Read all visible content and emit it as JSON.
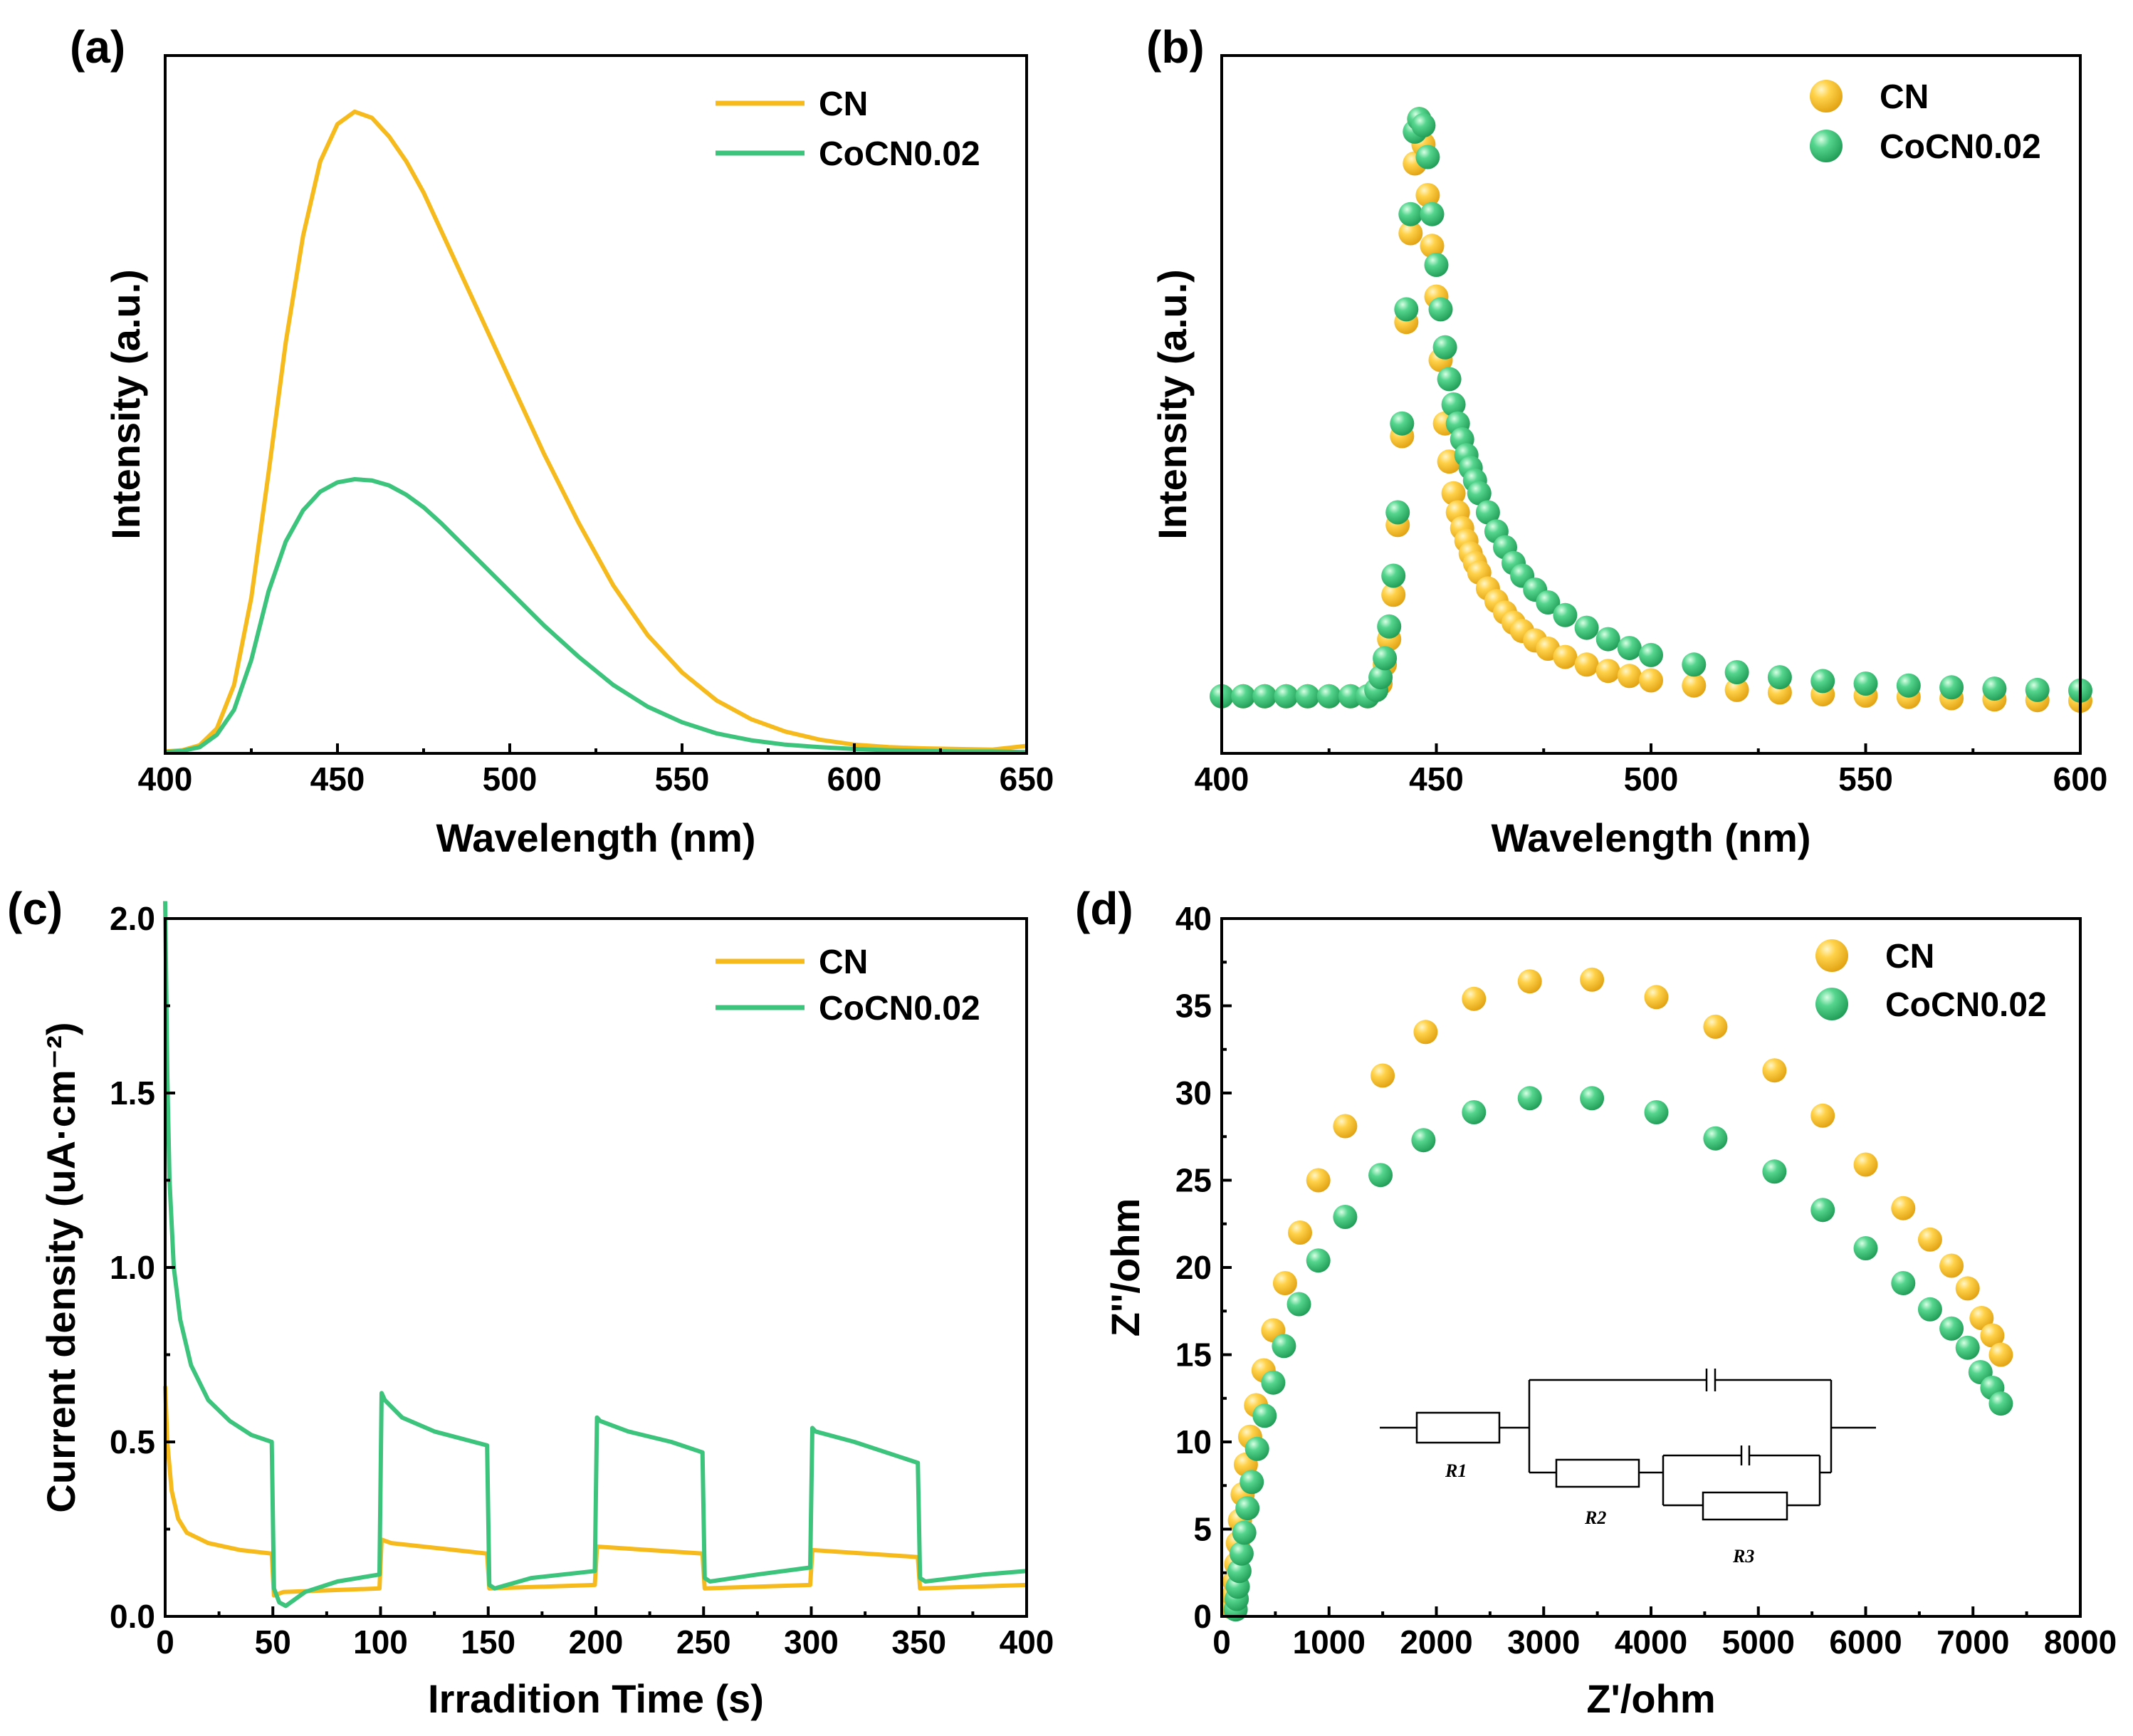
{
  "colors": {
    "cn": "#F7BA1C",
    "cocn": "#3CC47C"
  },
  "chart_data": [
    {
      "id": "a",
      "label": "(a)",
      "type": "line",
      "xlabel": "Wavelength (nm)",
      "ylabel": "Intensity (a.u.)",
      "xlim": [
        400,
        650
      ],
      "ylim": [
        0,
        1.12
      ],
      "xticks": [
        "400",
        "450",
        "500",
        "550",
        "600",
        "650"
      ],
      "legend_position": "top-right",
      "series": [
        {
          "name": "CN",
          "color_key": "cn",
          "x": [
            400,
            405,
            410,
            415,
            420,
            425,
            430,
            435,
            440,
            445,
            450,
            455,
            460,
            465,
            470,
            475,
            480,
            490,
            500,
            510,
            520,
            530,
            540,
            550,
            560,
            570,
            580,
            590,
            600,
            610,
            620,
            630,
            640,
            650
          ],
          "y": [
            0.003,
            0.005,
            0.013,
            0.04,
            0.11,
            0.25,
            0.45,
            0.66,
            0.83,
            0.95,
            1.01,
            1.03,
            1.02,
            0.99,
            0.95,
            0.9,
            0.84,
            0.72,
            0.6,
            0.48,
            0.37,
            0.27,
            0.19,
            0.13,
            0.085,
            0.055,
            0.035,
            0.022,
            0.014,
            0.01,
            0.008,
            0.007,
            0.006,
            0.012
          ]
        },
        {
          "name": "CoCN0.02",
          "color_key": "cocn",
          "x": [
            400,
            405,
            410,
            415,
            420,
            425,
            430,
            435,
            440,
            445,
            450,
            455,
            460,
            465,
            470,
            475,
            480,
            490,
            500,
            510,
            520,
            530,
            540,
            550,
            560,
            570,
            580,
            590,
            600,
            610,
            620,
            630,
            640,
            650
          ],
          "y": [
            0.002,
            0.004,
            0.01,
            0.03,
            0.07,
            0.15,
            0.26,
            0.34,
            0.39,
            0.42,
            0.435,
            0.44,
            0.438,
            0.43,
            0.415,
            0.395,
            0.37,
            0.315,
            0.26,
            0.205,
            0.155,
            0.11,
            0.075,
            0.05,
            0.032,
            0.021,
            0.014,
            0.01,
            0.007,
            0.005,
            0.004,
            0.003,
            0.003,
            0.002
          ]
        }
      ]
    },
    {
      "id": "b",
      "label": "(b)",
      "type": "scatter",
      "xlabel": "Wavelength (nm)",
      "ylabel": "Intensity (a.u.)",
      "xlim": [
        400,
        600
      ],
      "ylim": [
        0,
        1.1
      ],
      "xticks": [
        "400",
        "450",
        "500",
        "550",
        "600"
      ],
      "legend_position": "top-right",
      "series": [
        {
          "name": "CN",
          "color_key": "cn",
          "x": [
            400,
            405,
            410,
            415,
            420,
            425,
            430,
            434,
            436,
            437,
            438,
            439,
            440,
            441,
            442,
            443,
            444,
            445,
            446,
            447,
            448,
            449,
            450,
            451,
            452,
            453,
            454,
            455,
            456,
            457,
            458,
            459,
            460,
            462,
            464,
            466,
            468,
            470,
            473,
            476,
            480,
            485,
            490,
            495,
            500,
            510,
            520,
            530,
            540,
            550,
            560,
            570,
            580,
            590,
            600
          ],
          "y": [
            0.09,
            0.09,
            0.09,
            0.09,
            0.09,
            0.09,
            0.09,
            0.09,
            0.1,
            0.11,
            0.14,
            0.18,
            0.25,
            0.36,
            0.5,
            0.68,
            0.82,
            0.93,
            1.0,
            0.96,
            0.88,
            0.8,
            0.72,
            0.62,
            0.52,
            0.46,
            0.41,
            0.38,
            0.355,
            0.335,
            0.315,
            0.3,
            0.285,
            0.26,
            0.24,
            0.222,
            0.206,
            0.193,
            0.178,
            0.165,
            0.152,
            0.14,
            0.13,
            0.122,
            0.115,
            0.107,
            0.1,
            0.096,
            0.093,
            0.091,
            0.089,
            0.087,
            0.085,
            0.084,
            0.083
          ]
        },
        {
          "name": "CoCN0.02",
          "color_key": "cocn",
          "x": [
            400,
            405,
            410,
            415,
            420,
            425,
            430,
            434,
            436,
            437,
            438,
            439,
            440,
            441,
            442,
            443,
            444,
            445,
            446,
            447,
            448,
            449,
            450,
            451,
            452,
            453,
            454,
            455,
            456,
            457,
            458,
            459,
            460,
            462,
            464,
            466,
            468,
            470,
            473,
            476,
            480,
            485,
            490,
            495,
            500,
            510,
            520,
            530,
            540,
            550,
            560,
            570,
            580,
            590,
            600
          ],
          "y": [
            0.09,
            0.09,
            0.09,
            0.09,
            0.09,
            0.09,
            0.09,
            0.09,
            0.1,
            0.12,
            0.15,
            0.2,
            0.28,
            0.38,
            0.52,
            0.7,
            0.85,
            0.98,
            1.0,
            0.99,
            0.94,
            0.85,
            0.77,
            0.7,
            0.64,
            0.59,
            0.55,
            0.52,
            0.495,
            0.47,
            0.45,
            0.43,
            0.41,
            0.38,
            0.35,
            0.325,
            0.3,
            0.28,
            0.258,
            0.238,
            0.218,
            0.198,
            0.18,
            0.166,
            0.155,
            0.14,
            0.128,
            0.12,
            0.114,
            0.11,
            0.107,
            0.104,
            0.102,
            0.1,
            0.099
          ]
        }
      ]
    },
    {
      "id": "c",
      "label": "(c)",
      "type": "line",
      "xlabel": "Irradition Time (s)",
      "ylabel": "Current density (uA·cm⁻²)",
      "xlim": [
        0,
        400
      ],
      "ylim": [
        0,
        2.0
      ],
      "xticks": [
        "0",
        "50",
        "100",
        "150",
        "200",
        "250",
        "300",
        "350",
        "400"
      ],
      "yticks": [
        "0.0",
        "0.5",
        "1.0",
        "1.5",
        "2.0"
      ],
      "legend_position": "top-right",
      "series": [
        {
          "name": "CN",
          "color_key": "cn",
          "x": [
            0,
            1,
            3,
            6,
            10,
            20,
            35,
            49.5,
            50.5,
            55,
            99.5,
            100.5,
            105,
            149.5,
            150.5,
            199.5,
            200.5,
            249.5,
            250.5,
            299.5,
            300.5,
            349.5,
            350.5,
            400
          ],
          "y": [
            0.66,
            0.5,
            0.36,
            0.28,
            0.24,
            0.21,
            0.19,
            0.18,
            0.06,
            0.07,
            0.08,
            0.22,
            0.21,
            0.18,
            0.08,
            0.09,
            0.2,
            0.18,
            0.08,
            0.09,
            0.19,
            0.17,
            0.08,
            0.09
          ]
        },
        {
          "name": "CoCN0.02",
          "color_key": "cocn",
          "x": [
            0,
            0.5,
            1,
            2,
            4,
            7,
            12,
            20,
            30,
            40,
            49.5,
            50.5,
            53,
            56,
            65,
            80,
            99.5,
            100.5,
            102,
            110,
            125,
            149.5,
            150.5,
            153,
            170,
            199.5,
            200.5,
            202,
            215,
            235,
            249.5,
            250.5,
            253,
            275,
            299.5,
            300.5,
            302,
            320,
            349.5,
            350.5,
            353,
            380,
            400
          ],
          "y": [
            2.05,
            1.8,
            1.55,
            1.25,
            1.0,
            0.85,
            0.72,
            0.62,
            0.56,
            0.52,
            0.5,
            0.08,
            0.04,
            0.03,
            0.07,
            0.1,
            0.12,
            0.64,
            0.62,
            0.57,
            0.53,
            0.49,
            0.09,
            0.08,
            0.11,
            0.13,
            0.57,
            0.56,
            0.53,
            0.5,
            0.47,
            0.11,
            0.1,
            0.12,
            0.14,
            0.54,
            0.53,
            0.5,
            0.44,
            0.11,
            0.1,
            0.12,
            0.13
          ]
        }
      ]
    },
    {
      "id": "d",
      "label": "(d)",
      "type": "scatter",
      "xlabel": "Z'/ohm",
      "ylabel": "Z''/ohm",
      "xlim": [
        0,
        8000
      ],
      "ylim": [
        0,
        40
      ],
      "xticks": [
        "0",
        "1000",
        "2000",
        "3000",
        "4000",
        "5000",
        "6000",
        "7000",
        "8000"
      ],
      "yticks": [
        "0",
        "5",
        "10",
        "15",
        "20",
        "25",
        "30",
        "35",
        "40"
      ],
      "legend_position": "top-right",
      "series": [
        {
          "name": "CN",
          "color_key": "cn",
          "x": [
            100,
            110,
            120,
            135,
            150,
            170,
            195,
            225,
            265,
            320,
            390,
            480,
            590,
            730,
            900,
            1150,
            1500,
            1900,
            2350,
            2870,
            3450,
            4050,
            4600,
            5150,
            5600,
            6000,
            6350,
            6600,
            6800,
            6950,
            7080,
            7180,
            7260
          ],
          "y": [
            0.5,
            1.2,
            2.0,
            3.0,
            4.2,
            5.5,
            7.0,
            8.7,
            10.3,
            12.1,
            14.1,
            16.4,
            19.1,
            22.0,
            25.0,
            28.1,
            31.0,
            33.5,
            35.4,
            36.4,
            36.5,
            35.5,
            33.8,
            31.3,
            28.7,
            25.9,
            23.4,
            21.6,
            20.1,
            18.8,
            17.1,
            16.1,
            15.0
          ]
        },
        {
          "name": "CoCN0.02",
          "color_key": "cocn",
          "x": [
            130,
            140,
            150,
            165,
            185,
            210,
            240,
            280,
            330,
            400,
            480,
            580,
            720,
            900,
            1150,
            1480,
            1880,
            2350,
            2870,
            3450,
            4050,
            4600,
            5150,
            5600,
            6000,
            6350,
            6600,
            6800,
            6950,
            7070,
            7180,
            7260
          ],
          "y": [
            0.4,
            1.0,
            1.7,
            2.6,
            3.6,
            4.8,
            6.2,
            7.7,
            9.6,
            11.5,
            13.4,
            15.5,
            17.9,
            20.4,
            22.9,
            25.3,
            27.3,
            28.9,
            29.7,
            29.7,
            28.9,
            27.4,
            25.5,
            23.3,
            21.1,
            19.1,
            17.6,
            16.5,
            15.4,
            14.0,
            13.1,
            12.2
          ]
        }
      ],
      "inset": {
        "labels": [
          "R1",
          "R2",
          "R3"
        ]
      }
    }
  ]
}
